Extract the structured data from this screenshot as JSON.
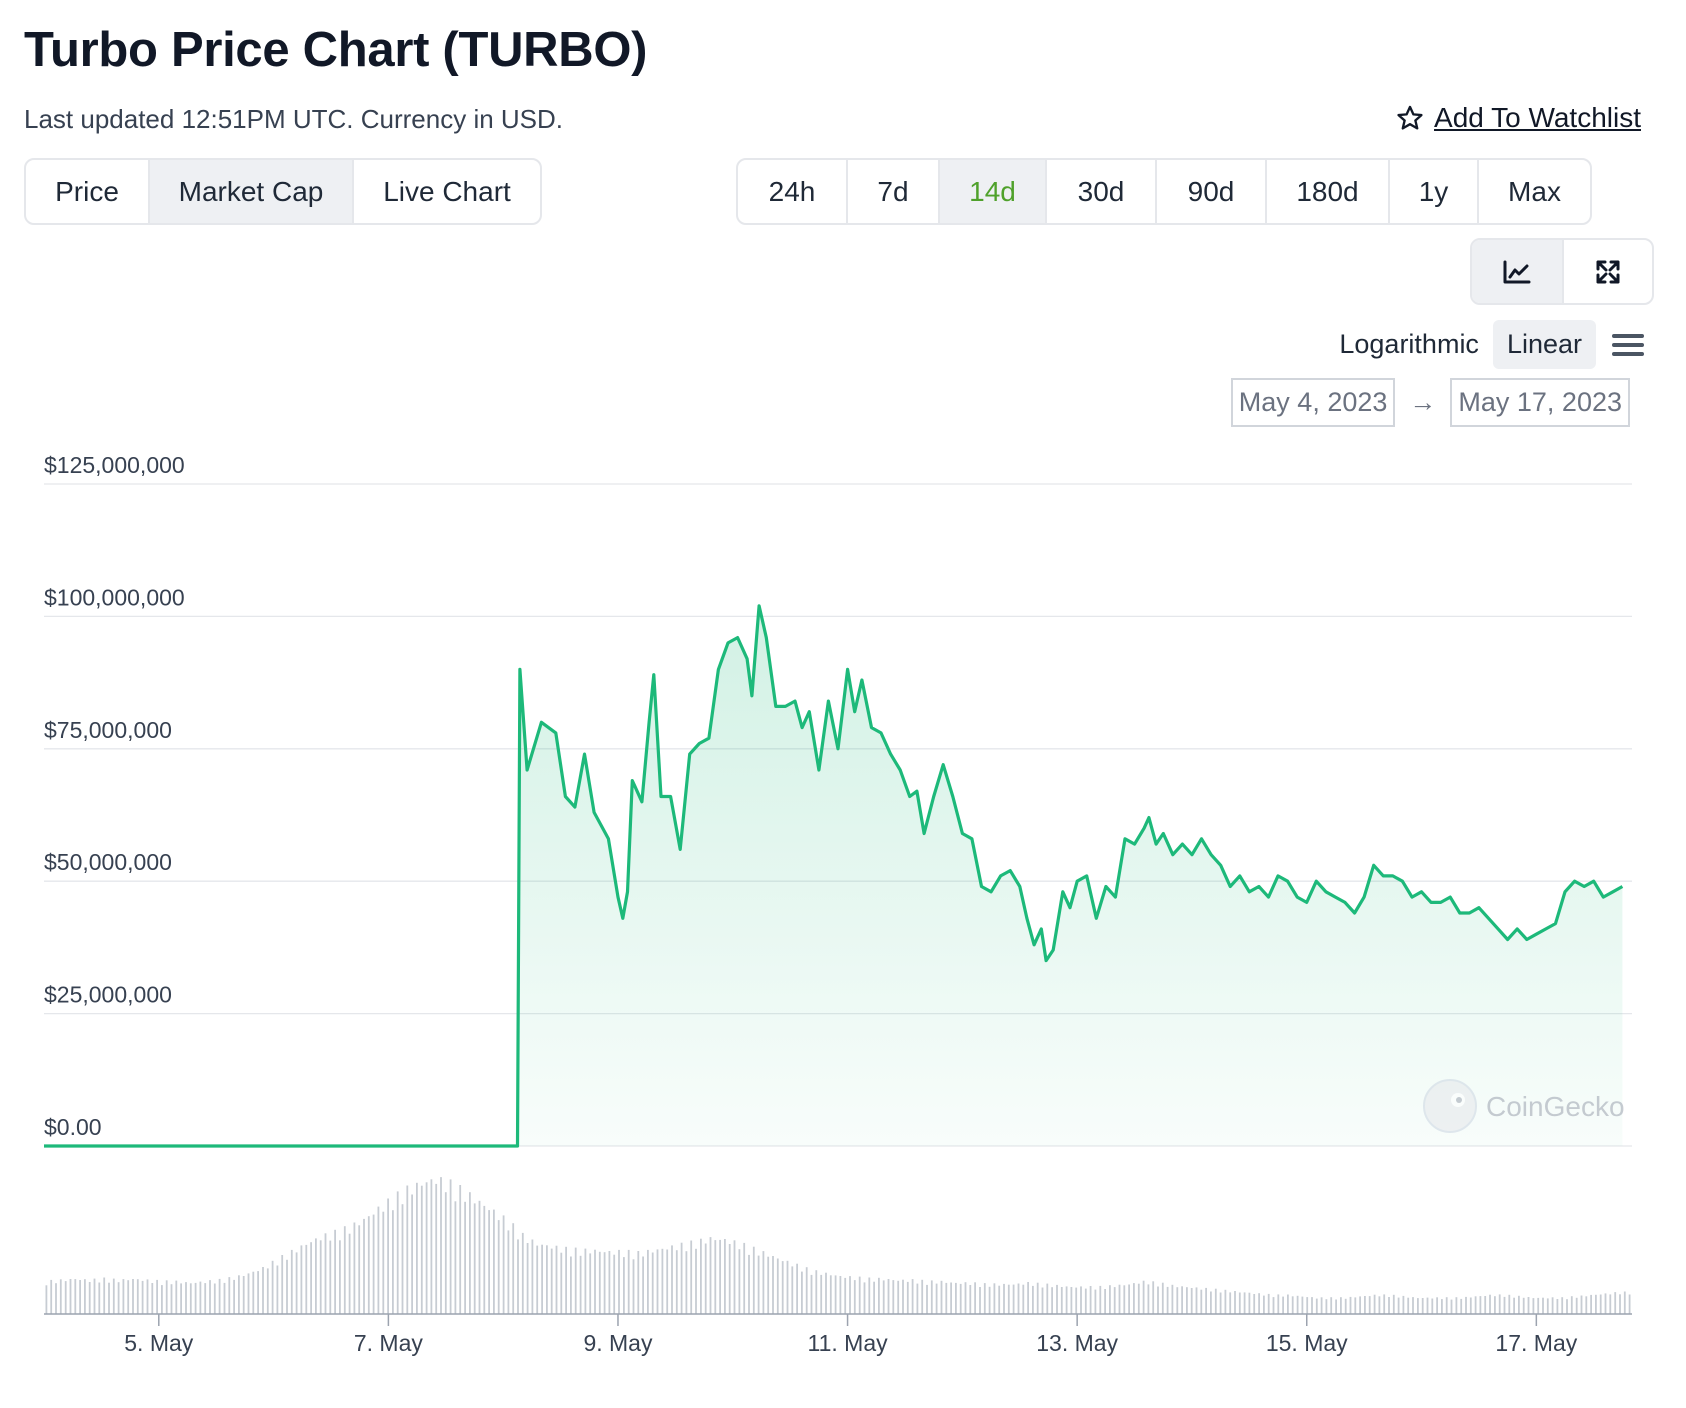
{
  "header": {
    "title": "Turbo Price Chart (TURBO)",
    "subtitle": "Last updated 12:51PM UTC. Currency in USD.",
    "watchlist_label": "Add To Watchlist"
  },
  "view_tabs": [
    {
      "label": "Price",
      "active": false
    },
    {
      "label": "Market Cap",
      "active": true
    },
    {
      "label": "Live Chart",
      "active": false
    }
  ],
  "range_tabs": [
    {
      "label": "24h",
      "active": false
    },
    {
      "label": "7d",
      "active": false
    },
    {
      "label": "14d",
      "active": true
    },
    {
      "label": "30d",
      "active": false
    },
    {
      "label": "90d",
      "active": false
    },
    {
      "label": "180d",
      "active": false
    },
    {
      "label": "1y",
      "active": false
    },
    {
      "label": "Max",
      "active": false
    }
  ],
  "chart_mode_icons": [
    "line-chart-icon",
    "expand-icon"
  ],
  "scale": {
    "logarithmic_label": "Logarithmic",
    "linear_label": "Linear",
    "active": "Linear"
  },
  "date_range": {
    "from": "May 4, 2023",
    "to": "May 17, 2023",
    "arrow": "→"
  },
  "watermark": "CoinGecko",
  "colors": {
    "line": "#1db97a",
    "active_range_text": "#4fa12b",
    "volume": "#c7ccd3"
  },
  "chart_data": {
    "type": "area",
    "title": "",
    "xlabel": "",
    "ylabel": "",
    "y_scale": "linear",
    "ylim": [
      0,
      125000000
    ],
    "xlim": [
      "2023-05-04T00:00",
      "2023-05-17T20:00"
    ],
    "y_ticks": [
      {
        "value": 125000000,
        "label": "$125,000,000"
      },
      {
        "value": 100000000,
        "label": "$100,000,000"
      },
      {
        "value": 75000000,
        "label": "$75,000,000"
      },
      {
        "value": 50000000,
        "label": "$50,000,000"
      },
      {
        "value": 25000000,
        "label": "$25,000,000"
      },
      {
        "value": 0,
        "label": "$0.00"
      }
    ],
    "x_ticks": [
      {
        "value": "2023-05-05",
        "label": "5. May"
      },
      {
        "value": "2023-05-07",
        "label": "7. May"
      },
      {
        "value": "2023-05-09",
        "label": "9. May"
      },
      {
        "value": "2023-05-11",
        "label": "11. May"
      },
      {
        "value": "2023-05-13",
        "label": "13. May"
      },
      {
        "value": "2023-05-15",
        "label": "15. May"
      },
      {
        "value": "2023-05-17",
        "label": "17. May"
      }
    ],
    "grid": true,
    "legend": "none",
    "series": [
      {
        "values": [
          [
            "2023-05-04T00:00",
            0
          ],
          [
            "2023-05-08T03:00",
            0
          ],
          [
            "2023-05-08T03:30",
            90000000
          ],
          [
            "2023-05-08T05:00",
            71000000
          ],
          [
            "2023-05-08T08:00",
            80000000
          ],
          [
            "2023-05-08T11:00",
            78000000
          ],
          [
            "2023-05-08T13:00",
            66000000
          ],
          [
            "2023-05-08T15:00",
            64000000
          ],
          [
            "2023-05-08T17:00",
            74000000
          ],
          [
            "2023-05-08T19:00",
            63000000
          ],
          [
            "2023-05-08T22:00",
            58000000
          ],
          [
            "2023-05-09T00:00",
            47000000
          ],
          [
            "2023-05-09T01:00",
            43000000
          ],
          [
            "2023-05-09T02:00",
            48000000
          ],
          [
            "2023-05-09T03:00",
            69000000
          ],
          [
            "2023-05-09T05:00",
            65000000
          ],
          [
            "2023-05-09T06:30",
            80000000
          ],
          [
            "2023-05-09T07:30",
            89000000
          ],
          [
            "2023-05-09T09:00",
            66000000
          ],
          [
            "2023-05-09T11:00",
            66000000
          ],
          [
            "2023-05-09T13:00",
            56000000
          ],
          [
            "2023-05-09T15:00",
            74000000
          ],
          [
            "2023-05-09T17:00",
            76000000
          ],
          [
            "2023-05-09T19:00",
            77000000
          ],
          [
            "2023-05-09T21:00",
            90000000
          ],
          [
            "2023-05-09T23:00",
            95000000
          ],
          [
            "2023-05-10T01:00",
            96000000
          ],
          [
            "2023-05-10T03:00",
            92000000
          ],
          [
            "2023-05-10T04:00",
            85000000
          ],
          [
            "2023-05-10T05:30",
            102000000
          ],
          [
            "2023-05-10T07:00",
            96000000
          ],
          [
            "2023-05-10T09:00",
            83000000
          ],
          [
            "2023-05-10T11:00",
            83000000
          ],
          [
            "2023-05-10T13:00",
            84000000
          ],
          [
            "2023-05-10T14:30",
            79000000
          ],
          [
            "2023-05-10T16:00",
            82000000
          ],
          [
            "2023-05-10T18:00",
            71000000
          ],
          [
            "2023-05-10T20:00",
            84000000
          ],
          [
            "2023-05-10T22:00",
            75000000
          ],
          [
            "2023-05-11T00:00",
            90000000
          ],
          [
            "2023-05-11T01:30",
            82000000
          ],
          [
            "2023-05-11T03:00",
            88000000
          ],
          [
            "2023-05-11T05:00",
            79000000
          ],
          [
            "2023-05-11T07:00",
            78000000
          ],
          [
            "2023-05-11T09:00",
            74000000
          ],
          [
            "2023-05-11T11:00",
            71000000
          ],
          [
            "2023-05-11T13:00",
            66000000
          ],
          [
            "2023-05-11T14:30",
            67000000
          ],
          [
            "2023-05-11T16:00",
            59000000
          ],
          [
            "2023-05-11T18:00",
            66000000
          ],
          [
            "2023-05-11T20:00",
            72000000
          ],
          [
            "2023-05-11T22:00",
            66000000
          ],
          [
            "2023-05-12T00:00",
            59000000
          ],
          [
            "2023-05-12T02:00",
            58000000
          ],
          [
            "2023-05-12T04:00",
            49000000
          ],
          [
            "2023-05-12T06:00",
            48000000
          ],
          [
            "2023-05-12T08:00",
            51000000
          ],
          [
            "2023-05-12T10:00",
            52000000
          ],
          [
            "2023-05-12T12:00",
            49000000
          ],
          [
            "2023-05-12T13:30",
            43000000
          ],
          [
            "2023-05-12T15:00",
            38000000
          ],
          [
            "2023-05-12T16:30",
            41000000
          ],
          [
            "2023-05-12T17:30",
            35000000
          ],
          [
            "2023-05-12T19:00",
            37000000
          ],
          [
            "2023-05-12T21:00",
            48000000
          ],
          [
            "2023-05-12T22:30",
            45000000
          ],
          [
            "2023-05-13T00:00",
            50000000
          ],
          [
            "2023-05-13T02:00",
            51000000
          ],
          [
            "2023-05-13T04:00",
            43000000
          ],
          [
            "2023-05-13T06:00",
            49000000
          ],
          [
            "2023-05-13T08:00",
            47000000
          ],
          [
            "2023-05-13T10:00",
            58000000
          ],
          [
            "2023-05-13T12:00",
            57000000
          ],
          [
            "2023-05-13T14:00",
            60000000
          ],
          [
            "2023-05-13T15:00",
            62000000
          ],
          [
            "2023-05-13T16:30",
            57000000
          ],
          [
            "2023-05-13T18:00",
            59000000
          ],
          [
            "2023-05-13T20:00",
            55000000
          ],
          [
            "2023-05-13T22:00",
            57000000
          ],
          [
            "2023-05-14T00:00",
            55000000
          ],
          [
            "2023-05-14T02:00",
            58000000
          ],
          [
            "2023-05-14T04:00",
            55000000
          ],
          [
            "2023-05-14T06:00",
            53000000
          ],
          [
            "2023-05-14T08:00",
            49000000
          ],
          [
            "2023-05-14T10:00",
            51000000
          ],
          [
            "2023-05-14T12:00",
            48000000
          ],
          [
            "2023-05-14T14:00",
            49000000
          ],
          [
            "2023-05-14T16:00",
            47000000
          ],
          [
            "2023-05-14T18:00",
            51000000
          ],
          [
            "2023-05-14T20:00",
            50000000
          ],
          [
            "2023-05-14T22:00",
            47000000
          ],
          [
            "2023-05-15T00:00",
            46000000
          ],
          [
            "2023-05-15T02:00",
            50000000
          ],
          [
            "2023-05-15T04:00",
            48000000
          ],
          [
            "2023-05-15T06:00",
            47000000
          ],
          [
            "2023-05-15T08:00",
            46000000
          ],
          [
            "2023-05-15T10:00",
            44000000
          ],
          [
            "2023-05-15T12:00",
            47000000
          ],
          [
            "2023-05-15T14:00",
            53000000
          ],
          [
            "2023-05-15T16:00",
            51000000
          ],
          [
            "2023-05-15T18:00",
            51000000
          ],
          [
            "2023-05-15T20:00",
            50000000
          ],
          [
            "2023-05-15T22:00",
            47000000
          ],
          [
            "2023-05-16T00:00",
            48000000
          ],
          [
            "2023-05-16T02:00",
            46000000
          ],
          [
            "2023-05-16T04:00",
            46000000
          ],
          [
            "2023-05-16T06:00",
            47000000
          ],
          [
            "2023-05-16T08:00",
            44000000
          ],
          [
            "2023-05-16T10:00",
            44000000
          ],
          [
            "2023-05-16T12:00",
            45000000
          ],
          [
            "2023-05-16T14:00",
            43000000
          ],
          [
            "2023-05-16T16:00",
            41000000
          ],
          [
            "2023-05-16T18:00",
            39000000
          ],
          [
            "2023-05-16T20:00",
            41000000
          ],
          [
            "2023-05-16T22:00",
            39000000
          ],
          [
            "2023-05-17T00:00",
            40000000
          ],
          [
            "2023-05-17T02:00",
            41000000
          ],
          [
            "2023-05-17T04:00",
            42000000
          ],
          [
            "2023-05-17T06:00",
            48000000
          ],
          [
            "2023-05-17T08:00",
            50000000
          ],
          [
            "2023-05-17T10:00",
            49000000
          ],
          [
            "2023-05-17T12:00",
            50000000
          ],
          [
            "2023-05-17T14:00",
            47000000
          ],
          [
            "2023-05-17T16:00",
            48000000
          ],
          [
            "2023-05-17T18:00",
            49000000
          ]
        ]
      }
    ],
    "volume_relative": [
      0.24,
      0.25,
      0.26,
      0.25,
      0.26,
      0.25,
      0.26,
      0.25,
      0.24,
      0.24,
      0.23,
      0.24,
      0.25,
      0.27,
      0.3,
      0.34,
      0.4,
      0.46,
      0.52,
      0.57,
      0.6,
      0.64,
      0.7,
      0.78,
      0.85,
      0.92,
      0.97,
      1.0,
      0.96,
      0.9,
      0.83,
      0.76,
      0.68,
      0.58,
      0.52,
      0.5,
      0.48,
      0.47,
      0.47,
      0.46,
      0.46,
      0.45,
      0.47,
      0.49,
      0.51,
      0.53,
      0.56,
      0.55,
      0.52,
      0.48,
      0.44,
      0.4,
      0.36,
      0.32,
      0.3,
      0.28,
      0.27,
      0.26,
      0.26,
      0.25,
      0.25,
      0.24,
      0.24,
      0.23,
      0.23,
      0.22,
      0.22,
      0.22,
      0.23,
      0.22,
      0.21,
      0.2,
      0.2,
      0.2,
      0.21,
      0.22,
      0.24,
      0.23,
      0.21,
      0.2,
      0.19,
      0.18,
      0.17,
      0.16,
      0.15,
      0.14,
      0.14,
      0.13,
      0.12,
      0.12,
      0.12,
      0.13,
      0.14,
      0.14,
      0.13,
      0.12,
      0.12,
      0.12,
      0.12,
      0.13,
      0.14,
      0.14,
      0.13,
      0.12,
      0.12,
      0.12,
      0.13,
      0.14,
      0.15,
      0.16
    ]
  }
}
